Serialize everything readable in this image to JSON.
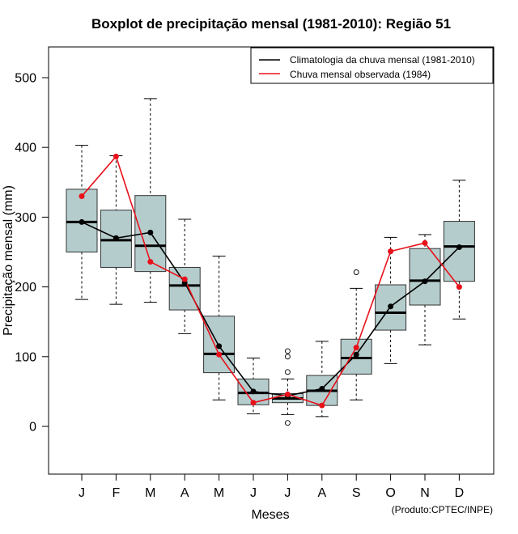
{
  "chart_data": {
    "type": "boxplot",
    "title": "Boxplot de precipitação mensal (1981-2010): Região 51",
    "xlabel": "Meses",
    "ylabel": "Precipitação mensal (mm)",
    "ylim": [
      -70,
      540
    ],
    "yticks": [
      0,
      100,
      200,
      300,
      400,
      500
    ],
    "categories": [
      "J",
      "F",
      "M",
      "A",
      "M",
      "J",
      "J",
      "A",
      "S",
      "O",
      "N",
      "D"
    ],
    "boxes": [
      {
        "low": 182,
        "q1": 250,
        "median": 293,
        "q3": 340,
        "high": 403,
        "outliers": []
      },
      {
        "low": 175,
        "q1": 228,
        "median": 267,
        "q3": 310,
        "high": 388,
        "outliers": []
      },
      {
        "low": 178,
        "q1": 222,
        "median": 259,
        "q3": 331,
        "high": 470,
        "outliers": []
      },
      {
        "low": 133,
        "q1": 167,
        "median": 202,
        "q3": 228,
        "high": 297,
        "outliers": []
      },
      {
        "low": 38,
        "q1": 77,
        "median": 104,
        "q3": 158,
        "high": 244,
        "outliers": []
      },
      {
        "low": 18,
        "q1": 31,
        "median": 48,
        "q3": 68,
        "high": 98,
        "outliers": []
      },
      {
        "low": 17,
        "q1": 34,
        "median": 40,
        "q3": 47,
        "high": 68,
        "outliers": [
          5,
          78,
          100,
          108
        ]
      },
      {
        "low": 14,
        "q1": 30,
        "median": 51,
        "q3": 73,
        "high": 122,
        "outliers": []
      },
      {
        "low": 38,
        "q1": 75,
        "median": 98,
        "q3": 125,
        "high": 198,
        "outliers": [
          221
        ]
      },
      {
        "low": 90,
        "q1": 138,
        "median": 163,
        "q3": 203,
        "high": 271,
        "outliers": []
      },
      {
        "low": 117,
        "q1": 174,
        "median": 209,
        "q3": 255,
        "high": 275,
        "outliers": []
      },
      {
        "low": 154,
        "q1": 208,
        "median": 258,
        "q3": 294,
        "high": 353,
        "outliers": []
      }
    ],
    "series": [
      {
        "name": "Climatologia da chuva mensal (1981-2010)",
        "color": "#000000",
        "values": [
          293,
          270,
          278,
          206,
          115,
          50,
          44,
          54,
          103,
          172,
          208,
          257
        ]
      },
      {
        "name": "Chuva mensal observada (1984)",
        "color": "#e8101a",
        "values": [
          330,
          387,
          236,
          211,
          103,
          34,
          46,
          30,
          113,
          251,
          263,
          200
        ]
      }
    ],
    "box_fill": "#b5cccc",
    "legend_position": "top-right",
    "credit": "(Produto:CPTEC/INPE)"
  }
}
